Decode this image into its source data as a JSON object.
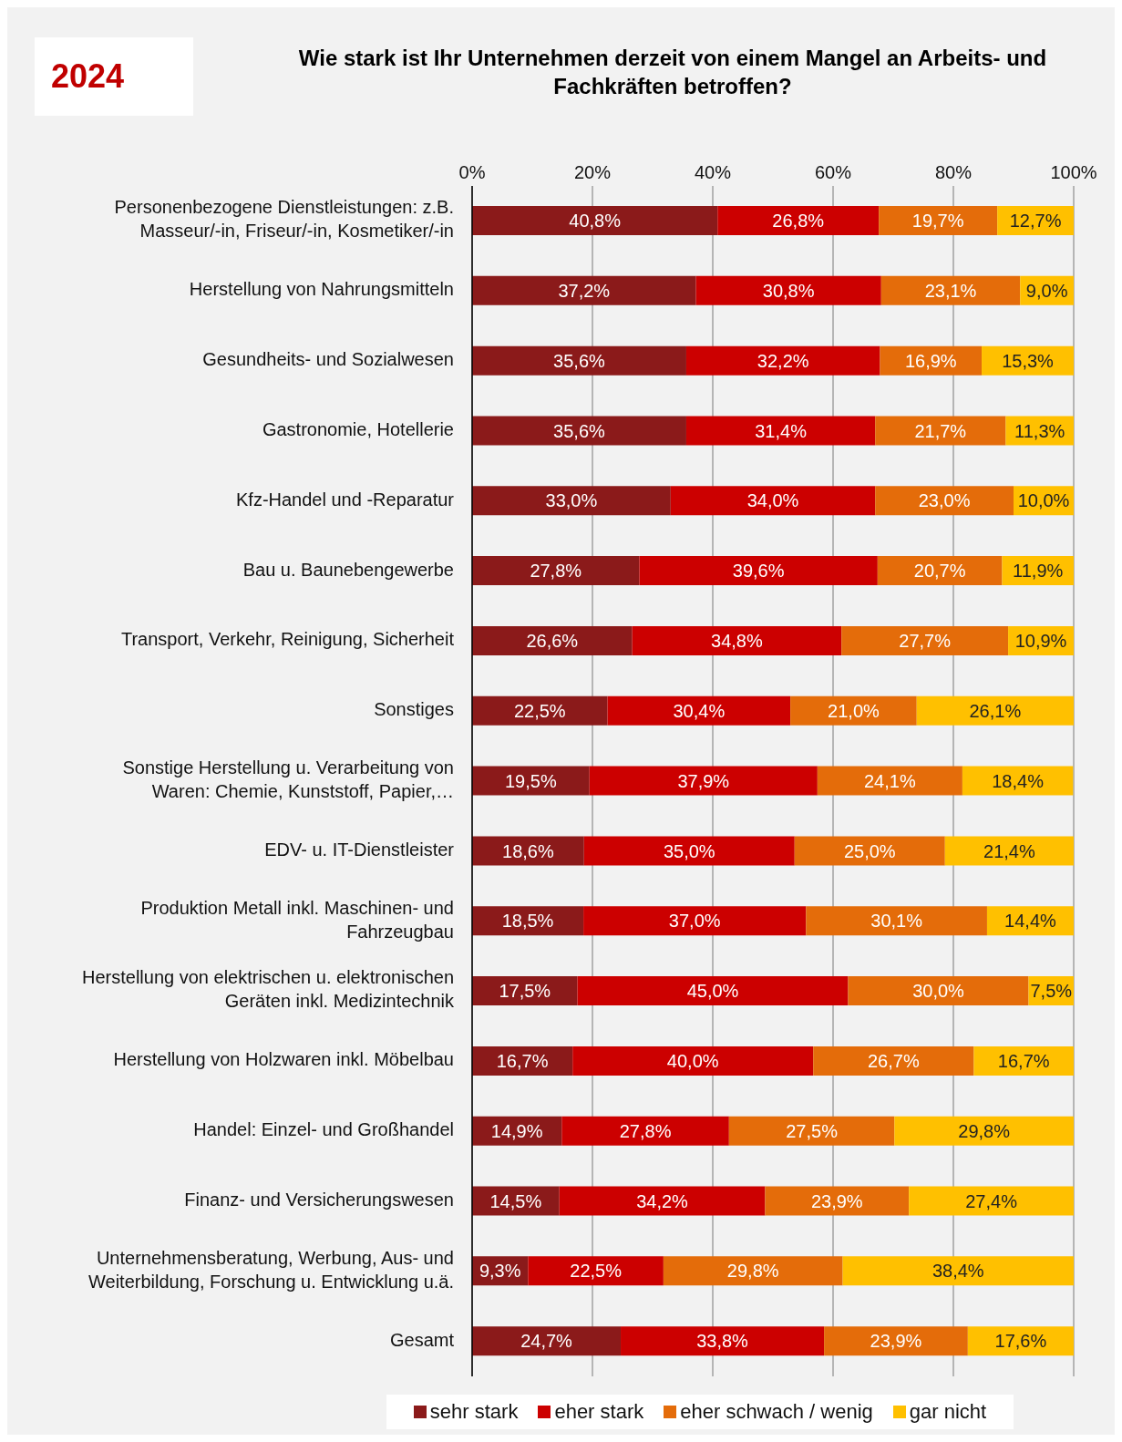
{
  "chart_data": {
    "type": "bar",
    "orientation": "horizontal",
    "stacked": true,
    "title": "Wie stark ist Ihr Unternehmen derzeit von einem Mangel an Arbeits- und Fachkräften betroffen?",
    "annotations": [
      "2024"
    ],
    "categories": [
      "Personenbezogene Dienstleistungen: z.B. Masseur/-in, Friseur/-in, Kosmetiker/-in",
      "Herstellung von Nahrungsmitteln",
      "Gesundheits- und Sozialwesen",
      "Gastronomie, Hotellerie",
      "Kfz-Handel und -Reparatur",
      "Bau u. Baunebengewerbe",
      "Transport, Verkehr, Reinigung, Sicherheit",
      "Sonstiges",
      "Sonstige Herstellung u. Verarbeitung von Waren: Chemie, Kunststoff, Papier,…",
      "EDV- u. IT-Dienstleister",
      "Produktion Metall inkl. Maschinen- und Fahrzeugbau",
      "Herstellung von elektrischen u. elektronischen Geräten inkl. Medizintechnik",
      "Herstellung von Holzwaren inkl. Möbelbau",
      "Handel: Einzel- und Großhandel",
      "Finanz- und Versicherungswesen",
      "Unternehmensberatung, Werbung, Aus- und Weiterbildung, Forschung u. Entwicklung u.ä.",
      "Gesamt"
    ],
    "series": [
      {
        "name": "sehr stark",
        "color": "#8b1a1a",
        "values": [
          40.8,
          37.2,
          35.6,
          35.6,
          33.0,
          27.8,
          26.6,
          22.5,
          19.5,
          18.6,
          18.5,
          17.5,
          16.7,
          14.9,
          14.5,
          9.3,
          24.7
        ],
        "value_labels": [
          "40,8%",
          "37,2%",
          "35,6%",
          "35,6%",
          "33,0%",
          "27,8%",
          "26,6%",
          "22,5%",
          "19,5%",
          "18,6%",
          "18,5%",
          "17,5%",
          "16,7%",
          "14,9%",
          "14,5%",
          "9,3%",
          "24,7%"
        ]
      },
      {
        "name": "eher stark",
        "color": "#cc0000",
        "values": [
          26.8,
          30.8,
          32.2,
          31.4,
          34.0,
          39.6,
          34.8,
          30.4,
          37.9,
          35.0,
          37.0,
          45.0,
          40.0,
          27.8,
          34.2,
          22.5,
          33.8
        ],
        "value_labels": [
          "26,8%",
          "30,8%",
          "32,2%",
          "31,4%",
          "34,0%",
          "39,6%",
          "34,8%",
          "30,4%",
          "37,9%",
          "35,0%",
          "37,0%",
          "45,0%",
          "40,0%",
          "27,8%",
          "34,2%",
          "22,5%",
          "33,8%"
        ]
      },
      {
        "name": "eher schwach / wenig",
        "color": "#e46c0a",
        "values": [
          19.7,
          23.1,
          16.9,
          21.7,
          23.0,
          20.7,
          27.7,
          21.0,
          24.1,
          25.0,
          30.1,
          30.0,
          26.7,
          27.5,
          23.9,
          29.8,
          23.9
        ],
        "value_labels": [
          "19,7%",
          "23,1%",
          "16,9%",
          "21,7%",
          "23,0%",
          "20,7%",
          "27,7%",
          "21,0%",
          "24,1%",
          "25,0%",
          "30,1%",
          "30,0%",
          "26,7%",
          "27,5%",
          "23,9%",
          "29,8%",
          "23,9%"
        ]
      },
      {
        "name": "gar nicht",
        "color": "#ffc000",
        "values": [
          12.7,
          9.0,
          15.3,
          11.3,
          10.0,
          11.9,
          10.9,
          26.1,
          18.4,
          21.4,
          14.4,
          7.5,
          16.7,
          29.8,
          27.4,
          38.4,
          17.6
        ],
        "value_labels": [
          "12,7%",
          "9,0%",
          "15,3%",
          "11,3%",
          "10,0%",
          "11,9%",
          "10,9%",
          "26,1%",
          "18,4%",
          "21,4%",
          "14,4%",
          "7,5%",
          "16,7%",
          "29,8%",
          "27,4%",
          "38,4%",
          "17,6%"
        ]
      }
    ],
    "xlim": [
      0,
      100
    ],
    "xticks": [
      {
        "value": 0,
        "label": "0%"
      },
      {
        "value": 20,
        "label": "20%"
      },
      {
        "value": 40,
        "label": "40%"
      },
      {
        "value": 60,
        "label": "60%"
      },
      {
        "value": 80,
        "label": "80%"
      },
      {
        "value": 100,
        "label": "100%"
      }
    ],
    "grid": "x",
    "legend": "bottom"
  }
}
